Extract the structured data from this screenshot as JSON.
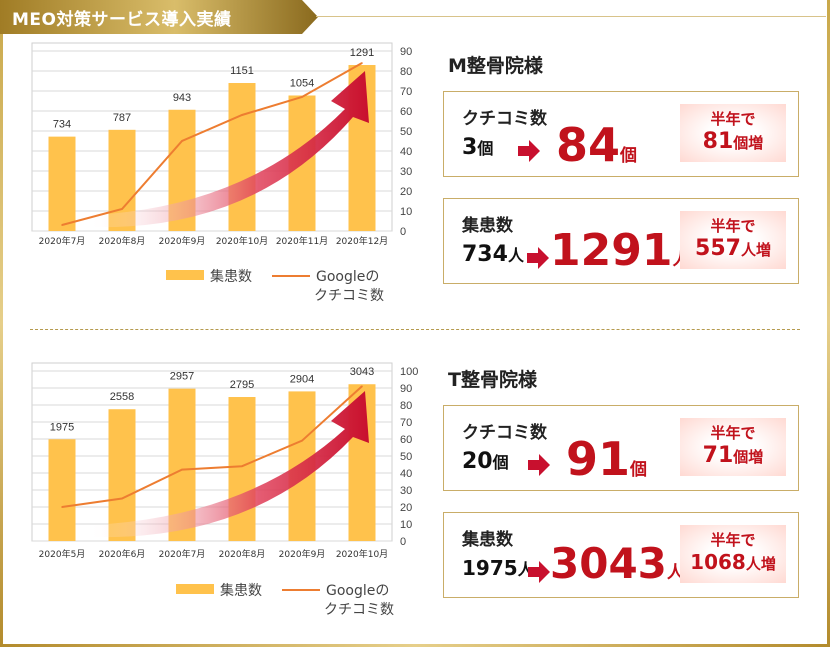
{
  "page_title": "MEO対策サービス導入実績",
  "legend": {
    "bar": "集患数",
    "line1": "Google",
    "line1b": "の",
    "line2": "クチコミ数"
  },
  "cases": [
    {
      "clinic": "M整骨院様",
      "review": {
        "label": "クチコミ数",
        "from_num": "3",
        "from_unit": "個",
        "to_num": "84",
        "to_unit": "個",
        "badge_top": "半年で",
        "badge_num": "81",
        "badge_unit": "個増"
      },
      "patient": {
        "label": "集患数",
        "from_num": "734",
        "from_unit": "人",
        "to_num": "1291",
        "to_unit": "人",
        "badge_top": "半年で",
        "badge_num": "557",
        "badge_unit": "人増"
      }
    },
    {
      "clinic": "T整骨院様",
      "review": {
        "label": "クチコミ数",
        "from_num": "20",
        "from_unit": "個",
        "to_num": "91",
        "to_unit": "個",
        "badge_top": "半年で",
        "badge_num": "71",
        "badge_unit": "個増"
      },
      "patient": {
        "label": "集患数",
        "from_num": "1975",
        "from_unit": "人",
        "to_num": "3043",
        "to_unit": "人",
        "badge_top": "半年で",
        "badge_num": "1068",
        "badge_unit": "人増"
      }
    }
  ],
  "colors": {
    "bar": "#ffc24c",
    "line": "#ed7d31",
    "arrow": "#c8102e",
    "accent": "#c1121c",
    "gold": "#c9a84a"
  },
  "chart_data": [
    {
      "type": "bar",
      "categories": [
        "2020年7月",
        "2020年8月",
        "2020年9月",
        "2020年10月",
        "2020年11月",
        "2020年12月"
      ],
      "series": [
        {
          "name": "集患数",
          "type": "bar",
          "values": [
            734,
            787,
            943,
            1151,
            1054,
            1291
          ]
        },
        {
          "name": "Googleのクチコミ数",
          "type": "line",
          "axis": "right",
          "values": [
            3,
            11,
            45,
            58,
            67,
            84
          ]
        }
      ],
      "y2lim": [
        0,
        90
      ],
      "y2ticks": [
        0,
        10,
        20,
        30,
        40,
        50,
        60,
        70,
        80,
        90
      ],
      "ylim": [
        0,
        1400
      ],
      "grid": true
    },
    {
      "type": "bar",
      "categories": [
        "2020年5月",
        "2020年6月",
        "2020年7月",
        "2020年8月",
        "2020年9月",
        "2020年10月"
      ],
      "series": [
        {
          "name": "集患数",
          "type": "bar",
          "values": [
            1975,
            2558,
            2957,
            2795,
            2904,
            3043
          ]
        },
        {
          "name": "Googleのクチコミ数",
          "type": "line",
          "axis": "right",
          "values": [
            20,
            25,
            42,
            44,
            59,
            91
          ]
        }
      ],
      "y2lim": [
        0,
        100
      ],
      "y2ticks": [
        0,
        10,
        20,
        30,
        40,
        50,
        60,
        70,
        80,
        90,
        100
      ],
      "ylim": [
        0,
        3300
      ],
      "grid": true
    }
  ]
}
